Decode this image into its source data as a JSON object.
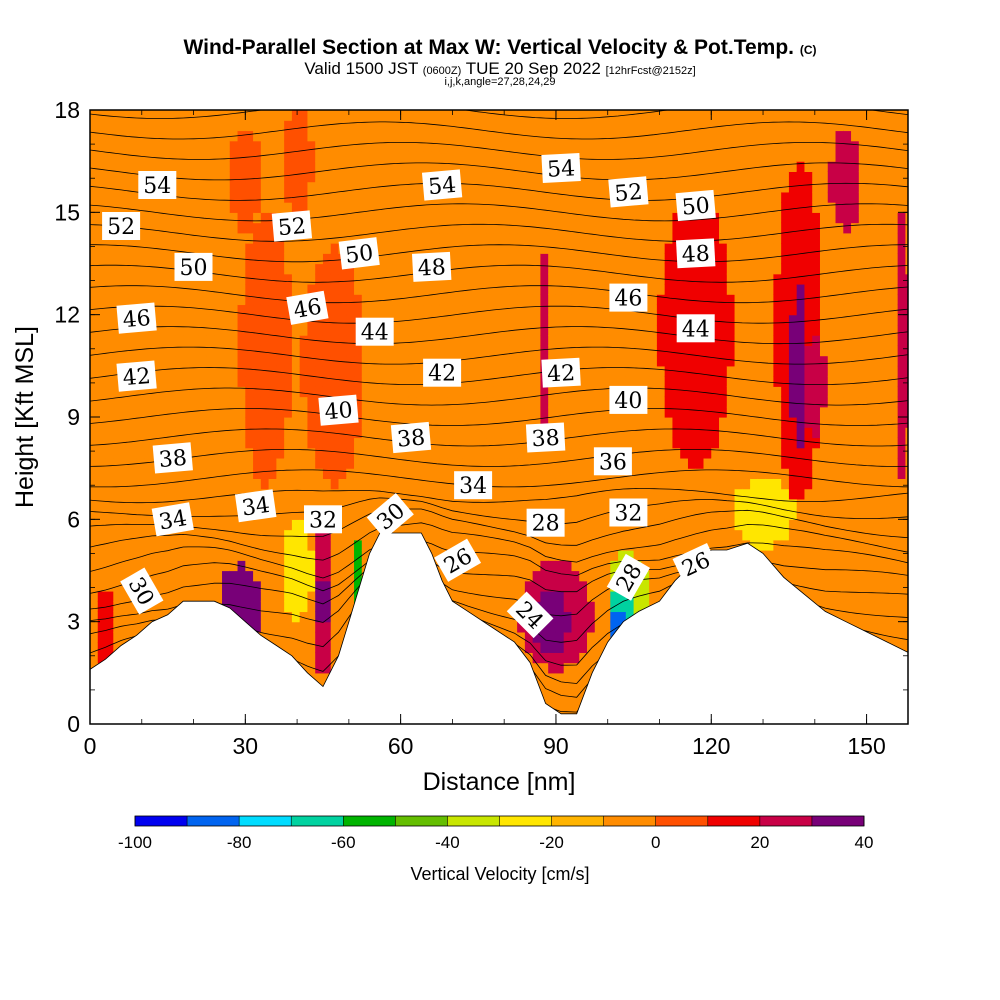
{
  "header": {
    "title_main": "Wind-Parallel Section at Max W: Vertical Velocity & Pot.Temp.",
    "title_mark": "(C)",
    "valid_a": "Valid 1500 JST",
    "valid_utc": "(0600Z)",
    "valid_b": "TUE 20 Sep 2022",
    "fcst": "[12hrFcst@2152z]",
    "indices": "i,j,k,angle=27,28,24,29"
  },
  "chart_data": {
    "type": "heatmap",
    "xlabel": "Distance [nm]",
    "ylabel": "Height [Kft MSL]",
    "xlim": [
      0,
      158
    ],
    "ylim": [
      0,
      18
    ],
    "xticks": [
      0,
      30,
      60,
      90,
      120,
      150
    ],
    "yticks": [
      0,
      3,
      6,
      9,
      12,
      15,
      18
    ],
    "colorbar": {
      "label": "Vertical Velocity [cm/s]",
      "range": [
        -100,
        40
      ],
      "step": 10,
      "tick_values": [
        -100,
        -80,
        -60,
        -40,
        -20,
        0,
        20,
        40
      ],
      "colors": [
        "#0000f0",
        "#0064f0",
        "#00dcff",
        "#00d2a0",
        "#00b400",
        "#64be00",
        "#c8e600",
        "#ffe600",
        "#ffb400",
        "#ff8c00",
        "#ff5000",
        "#f00000",
        "#c80046",
        "#780078"
      ]
    },
    "background_velocity": [
      -10,
      0
    ],
    "terrain_height": [
      [
        0,
        1.6
      ],
      [
        3,
        1.9
      ],
      [
        6,
        2.3
      ],
      [
        9,
        2.6
      ],
      [
        12,
        3.0
      ],
      [
        15,
        3.2
      ],
      [
        18,
        3.6
      ],
      [
        24,
        3.6
      ],
      [
        27,
        3.4
      ],
      [
        30,
        3.0
      ],
      [
        33,
        2.6
      ],
      [
        36,
        2.3
      ],
      [
        39,
        2.0
      ],
      [
        42,
        1.5
      ],
      [
        45,
        1.1
      ],
      [
        48,
        2.0
      ],
      [
        50,
        3.0
      ],
      [
        52,
        4.0
      ],
      [
        54,
        5.0
      ],
      [
        56,
        5.6
      ],
      [
        64,
        5.6
      ],
      [
        66,
        5.0
      ],
      [
        68,
        4.2
      ],
      [
        70,
        3.6
      ],
      [
        74,
        3.2
      ],
      [
        78,
        2.8
      ],
      [
        82,
        2.4
      ],
      [
        85,
        1.8
      ],
      [
        88,
        0.6
      ],
      [
        91,
        0.3
      ],
      [
        94,
        0.3
      ],
      [
        97,
        1.5
      ],
      [
        100,
        2.4
      ],
      [
        103,
        3.0
      ],
      [
        106,
        3.3
      ],
      [
        110,
        3.6
      ],
      [
        113,
        4.2
      ],
      [
        117,
        4.8
      ],
      [
        120,
        5.1
      ],
      [
        123,
        5.1
      ],
      [
        127,
        5.3
      ],
      [
        130,
        5.0
      ],
      [
        134,
        4.3
      ],
      [
        138,
        3.8
      ],
      [
        142,
        3.3
      ],
      [
        146,
        3.0
      ],
      [
        150,
        2.7
      ],
      [
        154,
        2.4
      ],
      [
        158,
        2.1
      ]
    ],
    "velocity_features": [
      {
        "x": 3,
        "y": 2.9,
        "rx": 2,
        "ry": 1.2,
        "w": 10
      },
      {
        "x": 29,
        "y": 3.5,
        "rx": 4,
        "ry": 1.2,
        "w": 30
      },
      {
        "x": 45,
        "y": 3.6,
        "rx": 2,
        "ry": 2.2,
        "w": 20
      },
      {
        "x": 45,
        "y": 3.6,
        "rx": 1,
        "ry": 0.9,
        "w": 35
      },
      {
        "x": 47,
        "y": 10.5,
        "rx": 6,
        "ry": 3.5,
        "w": 5
      },
      {
        "x": 34,
        "y": 11,
        "rx": 5,
        "ry": 4,
        "w": 5
      },
      {
        "x": 90,
        "y": 3.2,
        "rx": 7,
        "ry": 1.6,
        "w": 20
      },
      {
        "x": 89,
        "y": 3.0,
        "rx": 3.5,
        "ry": 1.0,
        "w": 35
      },
      {
        "x": 104,
        "y": 3.5,
        "rx": 4,
        "ry": 1.6,
        "w": -40
      },
      {
        "x": 103,
        "y": 3.2,
        "rx": 2.5,
        "ry": 0.9,
        "w": -70
      },
      {
        "x": 102,
        "y": 2.9,
        "rx": 1.2,
        "ry": 0.6,
        "w": -90
      },
      {
        "x": 40,
        "y": 4.6,
        "rx": 3,
        "ry": 1.5,
        "w": -25
      },
      {
        "x": 52,
        "y": 3.8,
        "rx": 1.2,
        "ry": 1.5,
        "w": -55
      },
      {
        "x": 130,
        "y": 6.2,
        "rx": 6,
        "ry": 1.0,
        "w": -25
      },
      {
        "x": 117,
        "y": 11.5,
        "rx": 7,
        "ry": 4,
        "w": 15
      },
      {
        "x": 137,
        "y": 11.5,
        "rx": 4.5,
        "ry": 5,
        "w": 15
      },
      {
        "x": 137,
        "y": 10.5,
        "rx": 1.5,
        "ry": 2.5,
        "w": 35
      },
      {
        "x": 146,
        "y": 16,
        "rx": 3,
        "ry": 1.5,
        "w": 20
      },
      {
        "x": 157,
        "y": 11,
        "rx": 1.5,
        "ry": 4,
        "w": 20
      },
      {
        "x": 88,
        "y": 11,
        "rx": 1.2,
        "ry": 3,
        "w": 25
      },
      {
        "x": 30,
        "y": 16,
        "rx": 3,
        "ry": 1.5,
        "w": 5
      },
      {
        "x": 40,
        "y": 16.5,
        "rx": 3,
        "ry": 1.5,
        "w": 5
      },
      {
        "x": 140,
        "y": 10,
        "rx": 2,
        "ry": 1.5,
        "w": 20
      }
    ],
    "theta_contours": {
      "levels_from": 24,
      "levels_to": 54,
      "step": 1
    },
    "contour_labels": [
      {
        "text": "54",
        "x": 13,
        "y": 15.8,
        "angle": 0
      },
      {
        "text": "54",
        "x": 68,
        "y": 15.8,
        "angle": -5
      },
      {
        "text": "54",
        "x": 91,
        "y": 16.3,
        "angle": -3
      },
      {
        "text": "52",
        "x": 6,
        "y": 14.6,
        "angle": 0
      },
      {
        "text": "52",
        "x": 39,
        "y": 14.6,
        "angle": -5
      },
      {
        "text": "52",
        "x": 104,
        "y": 15.6,
        "angle": -5
      },
      {
        "text": "50",
        "x": 20,
        "y": 13.4,
        "angle": 0
      },
      {
        "text": "50",
        "x": 52,
        "y": 13.8,
        "angle": -7
      },
      {
        "text": "50",
        "x": 117,
        "y": 15.2,
        "angle": -5
      },
      {
        "text": "48",
        "x": 66,
        "y": 13.4,
        "angle": -3
      },
      {
        "text": "48",
        "x": 117,
        "y": 13.8,
        "angle": -3
      },
      {
        "text": "46",
        "x": 9,
        "y": 11.9,
        "angle": -5
      },
      {
        "text": "46",
        "x": 42,
        "y": 12.2,
        "angle": -10
      },
      {
        "text": "46",
        "x": 104,
        "y": 12.5,
        "angle": 0
      },
      {
        "text": "44",
        "x": 55,
        "y": 11.5,
        "angle": 0
      },
      {
        "text": "44",
        "x": 117,
        "y": 11.6,
        "angle": 0
      },
      {
        "text": "42",
        "x": 9,
        "y": 10.2,
        "angle": -5
      },
      {
        "text": "42",
        "x": 68,
        "y": 10.3,
        "angle": 0
      },
      {
        "text": "42",
        "x": 91,
        "y": 10.3,
        "angle": -3
      },
      {
        "text": "40",
        "x": 48,
        "y": 9.2,
        "angle": -5
      },
      {
        "text": "40",
        "x": 104,
        "y": 9.5,
        "angle": 0
      },
      {
        "text": "38",
        "x": 16,
        "y": 7.8,
        "angle": -5
      },
      {
        "text": "38",
        "x": 62,
        "y": 8.4,
        "angle": -5
      },
      {
        "text": "38",
        "x": 88,
        "y": 8.4,
        "angle": -3
      },
      {
        "text": "36",
        "x": 101,
        "y": 7.7,
        "angle": 0
      },
      {
        "text": "34",
        "x": 16,
        "y": 6.0,
        "angle": -10
      },
      {
        "text": "34",
        "x": 32,
        "y": 6.4,
        "angle": -8
      },
      {
        "text": "34",
        "x": 74,
        "y": 7.0,
        "angle": 0
      },
      {
        "text": "32",
        "x": 45,
        "y": 6.0,
        "angle": 0
      },
      {
        "text": "32",
        "x": 104,
        "y": 6.2,
        "angle": 0
      },
      {
        "text": "30",
        "x": 10,
        "y": 3.9,
        "angle": 60
      },
      {
        "text": "30",
        "x": 58,
        "y": 6.1,
        "angle": -40
      },
      {
        "text": "28",
        "x": 88,
        "y": 5.9,
        "angle": 0
      },
      {
        "text": "28",
        "x": 104,
        "y": 4.3,
        "angle": -60
      },
      {
        "text": "26",
        "x": 71,
        "y": 4.8,
        "angle": -30
      },
      {
        "text": "26",
        "x": 117,
        "y": 4.7,
        "angle": -25
      },
      {
        "text": "24",
        "x": 85,
        "y": 3.2,
        "angle": 45
      }
    ]
  }
}
